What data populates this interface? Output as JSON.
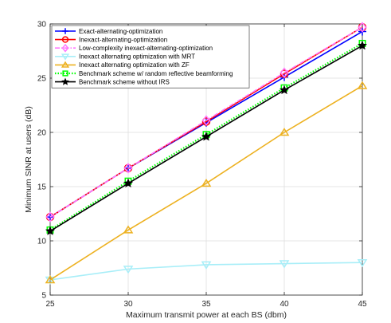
{
  "chart_data": {
    "type": "line",
    "xlabel": "Maximum transmit power at each BS (dbm)",
    "ylabel": "Minimum SINR at users (dB)",
    "xlim": [
      25,
      45
    ],
    "ylim": [
      5,
      30
    ],
    "xticks": [
      "25",
      "30",
      "35",
      "40",
      "45"
    ],
    "yticks": [
      "5",
      "10",
      "15",
      "20",
      "25",
      "30"
    ],
    "grid": true,
    "legend_position": "top-left",
    "x": [
      25,
      30,
      35,
      40,
      45
    ],
    "series": [
      {
        "name": "Exact-alternating-optimization",
        "values": [
          12.2,
          16.7,
          20.9,
          25.1,
          29.3
        ],
        "color": "#0000ff",
        "marker": "plus",
        "line": "solid"
      },
      {
        "name": "Inexact-alternating-optimization",
        "values": [
          12.2,
          16.7,
          21.0,
          25.4,
          29.7
        ],
        "color": "#ff0000",
        "marker": "circle",
        "line": "solid"
      },
      {
        "name": "Low-complexity inexact-alternating-optimization",
        "values": [
          12.2,
          16.7,
          21.1,
          25.5,
          29.7
        ],
        "color": "#ff77ff",
        "marker": "diamond",
        "line": "dashdot"
      },
      {
        "name": "Inexact alternating optimization with MRT",
        "values": [
          6.4,
          7.4,
          7.8,
          7.9,
          8.0
        ],
        "color": "#a8eef8",
        "marker": "triangle-down",
        "line": "solid"
      },
      {
        "name": "Inexact alternating optimization with ZF",
        "values": [
          6.4,
          11.0,
          15.3,
          20.0,
          24.3
        ],
        "color": "#edb120",
        "marker": "triangle-up",
        "line": "solid"
      },
      {
        "name": "Benchmark scheme w/ random reflective beamforming",
        "values": [
          11.0,
          15.5,
          19.8,
          24.1,
          28.2
        ],
        "color": "#00ff00",
        "marker": "square",
        "line": "dotted"
      },
      {
        "name": "Benchmark scheme without IRS",
        "values": [
          10.9,
          15.3,
          19.6,
          23.9,
          28.0
        ],
        "color": "#000000",
        "marker": "star",
        "line": "solid"
      }
    ]
  }
}
